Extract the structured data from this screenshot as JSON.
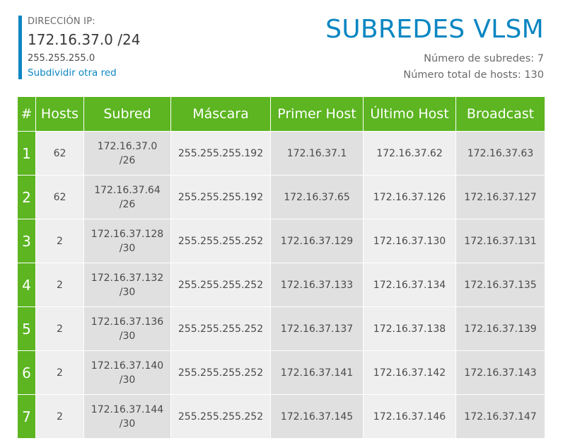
{
  "ip_panel": {
    "label": "DIRECCIÓN IP:",
    "address": "172.16.37.0 /24",
    "mask": "255.255.255.0",
    "link": "Subdividir otra red"
  },
  "title": "SUBREDES VLSM",
  "stats": {
    "subnets": "Número de subredes: 7",
    "hosts": "Número total de hosts: 130"
  },
  "accent_color": "#0a86c2",
  "header_color": "#5cb521",
  "table": {
    "headers": [
      "#",
      "Hosts",
      "Subred",
      "Máscara",
      "Primer Host",
      "Último Host",
      "Broadcast"
    ],
    "rows": [
      {
        "num": "1",
        "hosts": "62",
        "subnet_ip": "172.16.37.0",
        "subnet_prefix": "/26",
        "mask": "255.255.255.192",
        "first": "172.16.37.1",
        "last": "172.16.37.62",
        "broadcast": "172.16.37.63"
      },
      {
        "num": "2",
        "hosts": "62",
        "subnet_ip": "172.16.37.64",
        "subnet_prefix": "/26",
        "mask": "255.255.255.192",
        "first": "172.16.37.65",
        "last": "172.16.37.126",
        "broadcast": "172.16.37.127"
      },
      {
        "num": "3",
        "hosts": "2",
        "subnet_ip": "172.16.37.128",
        "subnet_prefix": "/30",
        "mask": "255.255.255.252",
        "first": "172.16.37.129",
        "last": "172.16.37.130",
        "broadcast": "172.16.37.131"
      },
      {
        "num": "4",
        "hosts": "2",
        "subnet_ip": "172.16.37.132",
        "subnet_prefix": "/30",
        "mask": "255.255.255.252",
        "first": "172.16.37.133",
        "last": "172.16.37.134",
        "broadcast": "172.16.37.135"
      },
      {
        "num": "5",
        "hosts": "2",
        "subnet_ip": "172.16.37.136",
        "subnet_prefix": "/30",
        "mask": "255.255.255.252",
        "first": "172.16.37.137",
        "last": "172.16.37.138",
        "broadcast": "172.16.37.139"
      },
      {
        "num": "6",
        "hosts": "2",
        "subnet_ip": "172.16.37.140",
        "subnet_prefix": "/30",
        "mask": "255.255.255.252",
        "first": "172.16.37.141",
        "last": "172.16.37.142",
        "broadcast": "172.16.37.143"
      },
      {
        "num": "7",
        "hosts": "2",
        "subnet_ip": "172.16.37.144",
        "subnet_prefix": "/30",
        "mask": "255.255.255.252",
        "first": "172.16.37.145",
        "last": "172.16.37.146",
        "broadcast": "172.16.37.147"
      }
    ]
  }
}
